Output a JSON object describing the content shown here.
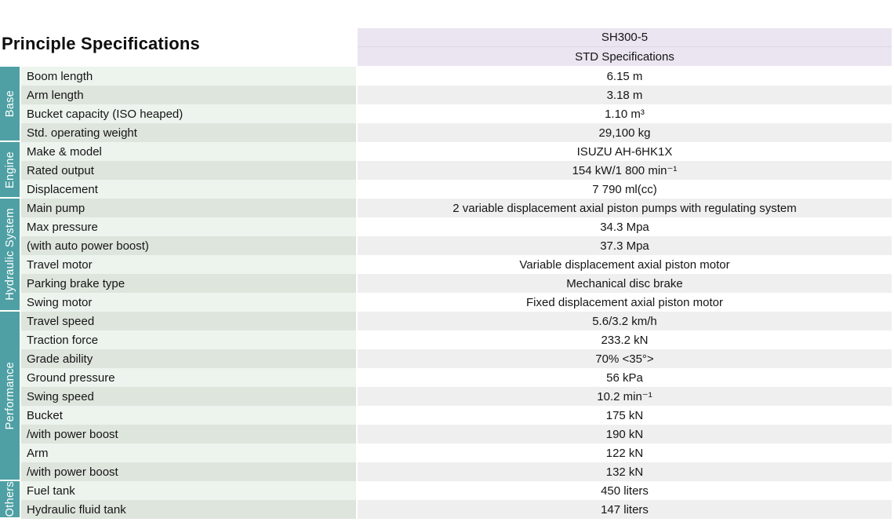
{
  "title": "Principle Specifications",
  "header": {
    "model": "SH300-5",
    "spec_type": "STD Specifications"
  },
  "colors": {
    "sidebar_teal": "#4FA0A4",
    "name_row_odd": "#EDF4EE",
    "name_row_even": "#DEE5DD",
    "value_row_odd": "#FFFFFF",
    "value_row_even": "#EFEFEF",
    "header_bg": "#EAE5F0"
  },
  "sections": [
    {
      "label": "Base",
      "rows": [
        {
          "name": "Boom length",
          "value": "6.15 m"
        },
        {
          "name": "Arm length",
          "value": "3.18 m"
        },
        {
          "name": "Bucket capacity (ISO heaped)",
          "value": "1.10 m³"
        },
        {
          "name": "Std. operating weight",
          "value": "29,100 kg"
        }
      ]
    },
    {
      "label": "Engine",
      "rows": [
        {
          "name": "Make & model",
          "value": "ISUZU AH-6HK1X"
        },
        {
          "name": "Rated output",
          "value": "154 kW/1 800 min⁻¹"
        },
        {
          "name": "Displacement",
          "value": "7 790 ml(cc)"
        }
      ]
    },
    {
      "label": "Hydraulic System",
      "rows": [
        {
          "name": "Main pump",
          "value": "2 variable displacement axial piston pumps with regulating system"
        },
        {
          "name": "Max pressure",
          "value": "34.3 Mpa"
        },
        {
          "name": "(with auto power boost)",
          "value": "37.3 Mpa"
        },
        {
          "name": "Travel motor",
          "value": "Variable displacement axial piston motor"
        },
        {
          "name": "Parking brake type",
          "value": "Mechanical disc brake"
        },
        {
          "name": "Swing motor",
          "value": "Fixed displacement axial piston motor"
        }
      ]
    },
    {
      "label": "Performance",
      "rows": [
        {
          "name": "Travel speed",
          "value": "5.6/3.2 km/h"
        },
        {
          "name": "Traction force",
          "value": "233.2 kN"
        },
        {
          "name": "Grade ability",
          "value": "70% <35°>"
        },
        {
          "name": "Ground pressure",
          "value": "56 kPa"
        },
        {
          "name": "Swing speed",
          "value": "10.2 min⁻¹"
        },
        {
          "name": "Bucket",
          "value": "175 kN"
        },
        {
          "name": "/with power boost",
          "value": "190 kN"
        },
        {
          "name": "Arm",
          "value": "122 kN"
        },
        {
          "name": "/with power boost",
          "value": "132 kN"
        }
      ]
    },
    {
      "label": "Others",
      "rows": [
        {
          "name": "Fuel tank",
          "value": "450 liters"
        },
        {
          "name": "Hydraulic fluid tank",
          "value": "147 liters"
        }
      ]
    }
  ]
}
